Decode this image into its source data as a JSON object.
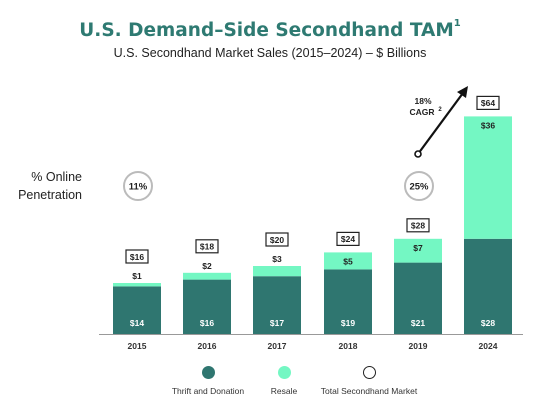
{
  "title": "U.S. Demand–Side Secondhand TAM",
  "title_footnote": "1",
  "subtitle": "U.S. Secondhand Market Sales (2015–2024) – $ Billions",
  "online_penetration_label": [
    "% Online",
    "Penetration"
  ],
  "cagr_annotation": [
    "18%",
    "CAGR",
    "2"
  ],
  "colors": {
    "title": "#2e7a72",
    "thrift": "#2f7670",
    "resale": "#74f7c3",
    "circle_stroke": "#bbbbbb"
  },
  "legend": [
    {
      "label": "Thrift and Donation",
      "style": "thrift"
    },
    {
      "label": "Resale",
      "style": "resale"
    },
    {
      "label": "Total Secondhand Market",
      "style": "total"
    }
  ],
  "chart_data": {
    "type": "bar",
    "stacked": true,
    "categories": [
      "2015",
      "2016",
      "2017",
      "2018",
      "2019",
      "2024"
    ],
    "series": [
      {
        "name": "Thrift and Donation",
        "values": [
          14,
          16,
          17,
          19,
          21,
          28
        ],
        "labels": [
          "$14",
          "$16",
          "$17",
          "$19",
          "$21",
          "$28"
        ]
      },
      {
        "name": "Resale",
        "values": [
          1,
          2,
          3,
          5,
          7,
          36
        ],
        "labels": [
          "$1",
          "$2",
          "$3",
          "$5",
          "$7",
          "$36"
        ]
      }
    ],
    "totals": [
      "$16",
      "$18",
      "$20",
      "$24",
      "$28",
      "$64"
    ],
    "online_penetration": [
      {
        "category": "2015",
        "value": "11%"
      },
      {
        "category": "2019",
        "value": "25%"
      }
    ],
    "forecast_separator_before": "2024",
    "ylim": [
      0,
      64
    ]
  }
}
